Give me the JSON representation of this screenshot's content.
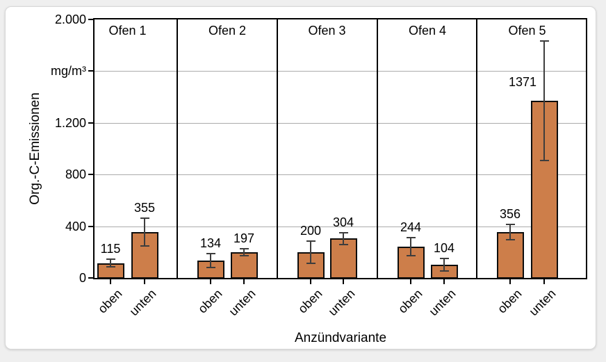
{
  "frame": {
    "background": "#efefef",
    "card_background": "#ffffff"
  },
  "chart_data": {
    "type": "bar",
    "title": "",
    "xlabel": "Anzündvariante",
    "ylabel": "Org.-C-Emissionen",
    "unit": "mg/m³",
    "ylim": [
      0,
      2000
    ],
    "grid": true,
    "legend_position": "none",
    "bar_color": "#CD7E4A",
    "bar_border_color": "#0d0d0d",
    "error_bar_color": "#3d3d3d",
    "yticks": [
      {
        "value": 2000,
        "label": "2.000"
      },
      {
        "value": 1600,
        "label": "mg/m³"
      },
      {
        "value": 1200,
        "label": "1.200"
      },
      {
        "value": 800,
        "label": "800"
      },
      {
        "value": 400,
        "label": "400"
      },
      {
        "value": 0,
        "label": "0"
      }
    ],
    "gridline_values": [
      400,
      800,
      1200,
      1600
    ],
    "categories": [
      "oben",
      "unten"
    ],
    "groups": [
      {
        "label": "Ofen 1",
        "bars": [
          {
            "category": "oben",
            "value": 115,
            "error": 30
          },
          {
            "category": "unten",
            "value": 355,
            "error": 105
          }
        ]
      },
      {
        "label": "Ofen 2",
        "bars": [
          {
            "category": "oben",
            "value": 134,
            "error": 55
          },
          {
            "category": "unten",
            "value": 197,
            "error": 27
          }
        ]
      },
      {
        "label": "Ofen 3",
        "bars": [
          {
            "category": "oben",
            "value": 200,
            "error": 85
          },
          {
            "category": "unten",
            "value": 304,
            "error": 45
          }
        ]
      },
      {
        "label": "Ofen 4",
        "bars": [
          {
            "category": "oben",
            "value": 244,
            "error": 70
          },
          {
            "category": "unten",
            "value": 104,
            "error": 48
          }
        ]
      },
      {
        "label": "Ofen 5",
        "bars": [
          {
            "category": "oben",
            "value": 356,
            "error": 58
          },
          {
            "category": "unten",
            "value": 1371,
            "error": 460
          }
        ]
      }
    ]
  }
}
